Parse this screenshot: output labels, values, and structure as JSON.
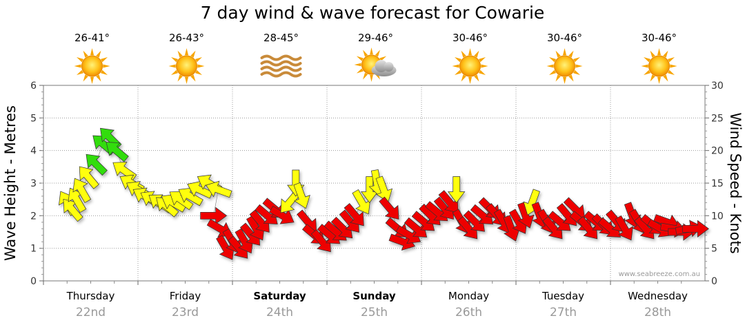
{
  "chart_data": {
    "type": "scatter",
    "title": "7 day wind & wave forecast for Cowarie",
    "ylabel_left": "Wave Height - Metres",
    "ylabel_right": "Wind Speed - Knots",
    "ylim_left": [
      0,
      6
    ],
    "ylim_right": [
      0,
      30
    ],
    "yticks_left": [
      "0",
      "1",
      "2",
      "3",
      "4",
      "5",
      "6"
    ],
    "yticks_right": [
      "0",
      "5",
      "10",
      "15",
      "20",
      "25",
      "30"
    ],
    "grid": true,
    "watermark": "www.seabreeze.com.au",
    "days": [
      {
        "name": "Thursday",
        "date": "22nd",
        "bold": false,
        "temp": "26-41°",
        "icon": "sun-icon"
      },
      {
        "name": "Friday",
        "date": "23rd",
        "bold": false,
        "temp": "26-43°",
        "icon": "sun-icon"
      },
      {
        "name": "Saturday",
        "date": "24th",
        "bold": true,
        "temp": "28-45°",
        "icon": "haze-icon"
      },
      {
        "name": "Sunday",
        "date": "25th",
        "bold": true,
        "temp": "29-46°",
        "icon": "sun-cloud-icon"
      },
      {
        "name": "Monday",
        "date": "26th",
        "bold": false,
        "temp": "30-46°",
        "icon": "sun-icon"
      },
      {
        "name": "Tuesday",
        "date": "27th",
        "bold": false,
        "temp": "30-46°",
        "icon": "sun-icon"
      },
      {
        "name": "Wednesday",
        "date": "28th",
        "bold": false,
        "temp": "30-46°",
        "icon": "sun-icon"
      }
    ],
    "series": [
      {
        "kind": "wind-arrows",
        "colors": {
          "green": "#33dd11",
          "yellow": "#ffff11",
          "red": "#ee0000"
        },
        "points": [
          [
            0.0,
            12,
            "#ffff11",
            330
          ],
          [
            0.05,
            11,
            "#ffff11",
            320
          ],
          [
            0.1,
            12.5,
            "#ffff11",
            330
          ],
          [
            0.15,
            14,
            "#ffff11",
            330
          ],
          [
            0.22,
            16,
            "#ffff11",
            320
          ],
          [
            0.3,
            18,
            "#33dd11",
            315
          ],
          [
            0.38,
            21,
            "#33dd11",
            310
          ],
          [
            0.45,
            22,
            "#33dd11",
            315
          ],
          [
            0.52,
            20,
            "#33dd11",
            310
          ],
          [
            0.6,
            17,
            "#ffff11",
            305
          ],
          [
            0.68,
            15,
            "#ffff11",
            300
          ],
          [
            0.75,
            14,
            "#ffff11",
            300
          ],
          [
            0.82,
            13,
            "#ffff11",
            300
          ],
          [
            0.9,
            12.5,
            "#ffff11",
            300
          ],
          [
            0.98,
            12,
            "#ffff11",
            305
          ],
          [
            1.05,
            11.5,
            "#ffff11",
            310
          ],
          [
            1.12,
            12,
            "#ffff11",
            300
          ],
          [
            1.2,
            12.5,
            "#ffff11",
            305
          ],
          [
            1.3,
            13,
            "#ffff11",
            300
          ],
          [
            1.4,
            14,
            "#ffff11",
            295
          ],
          [
            1.5,
            15,
            "#ffff11",
            300
          ],
          [
            1.6,
            14,
            "#ffff11",
            290
          ],
          [
            1.55,
            10,
            "#ee0000",
            90
          ],
          [
            1.62,
            8,
            "#ee0000",
            120
          ],
          [
            1.68,
            5,
            "#ee0000",
            150
          ],
          [
            1.75,
            6,
            "#ee0000",
            150
          ],
          [
            1.82,
            5,
            "#ee0000",
            140
          ],
          [
            1.88,
            6,
            "#ee0000",
            150
          ],
          [
            1.95,
            7,
            "#ee0000",
            140
          ],
          [
            2.0,
            8,
            "#ee0000",
            150
          ],
          [
            2.05,
            9,
            "#ee0000",
            140
          ],
          [
            2.12,
            10,
            "#ee0000",
            130
          ],
          [
            2.2,
            11,
            "#ee0000",
            130
          ],
          [
            2.28,
            10,
            "#ee0000",
            120
          ],
          [
            2.35,
            12,
            "#ffff11",
            220
          ],
          [
            2.42,
            15,
            "#ffff11",
            180
          ],
          [
            2.48,
            13,
            "#ffff11",
            160
          ],
          [
            2.55,
            9,
            "#ee0000",
            140
          ],
          [
            2.62,
            7,
            "#ee0000",
            130
          ],
          [
            2.7,
            6,
            "#ee0000",
            140
          ],
          [
            2.78,
            7,
            "#ee0000",
            130
          ],
          [
            2.85,
            7.5,
            "#ee0000",
            130
          ],
          [
            2.92,
            8,
            "#ee0000",
            135
          ],
          [
            3.0,
            9,
            "#ee0000",
            140
          ],
          [
            3.05,
            10,
            "#ee0000",
            140
          ],
          [
            3.12,
            12,
            "#ffff11",
            150
          ],
          [
            3.2,
            14,
            "#ffff11",
            180
          ],
          [
            3.28,
            15,
            "#ffff11",
            170
          ],
          [
            3.35,
            14,
            "#ffff11",
            160
          ],
          [
            3.42,
            11,
            "#ee0000",
            140
          ],
          [
            3.5,
            8,
            "#ee0000",
            130
          ],
          [
            3.55,
            6,
            "#ee0000",
            110
          ],
          [
            3.62,
            7,
            "#ee0000",
            120
          ],
          [
            3.7,
            8,
            "#ee0000",
            130
          ],
          [
            3.78,
            9,
            "#ee0000",
            130
          ],
          [
            3.85,
            10,
            "#ee0000",
            135
          ],
          [
            3.92,
            10.5,
            "#ee0000",
            130
          ],
          [
            4.0,
            11,
            "#ee0000",
            140
          ],
          [
            4.05,
            12,
            "#ee0000",
            140
          ],
          [
            4.12,
            14,
            "#ffff11",
            180
          ],
          [
            4.18,
            9,
            "#ee0000",
            150
          ],
          [
            4.25,
            8,
            "#ee0000",
            140
          ],
          [
            4.32,
            9,
            "#ee0000",
            135
          ],
          [
            4.4,
            10,
            "#ee0000",
            130
          ],
          [
            4.48,
            11,
            "#ee0000",
            135
          ],
          [
            4.55,
            10,
            "#ee0000",
            140
          ],
          [
            4.62,
            9,
            "#ee0000",
            150
          ],
          [
            4.7,
            8,
            "#ee0000",
            160
          ],
          [
            4.78,
            9,
            "#ee0000",
            150
          ],
          [
            4.85,
            10,
            "#ee0000",
            160
          ],
          [
            4.92,
            12,
            "#ffff11",
            200
          ],
          [
            5.0,
            10,
            "#ee0000",
            160
          ],
          [
            5.08,
            9,
            "#ee0000",
            150
          ],
          [
            5.15,
            8,
            "#ee0000",
            140
          ],
          [
            5.22,
            9,
            "#ee0000",
            130
          ],
          [
            5.3,
            10,
            "#ee0000",
            140
          ],
          [
            5.38,
            11,
            "#ee0000",
            135
          ],
          [
            5.45,
            9,
            "#ee0000",
            130
          ],
          [
            5.52,
            8,
            "#ee0000",
            140
          ],
          [
            5.6,
            9,
            "#ee0000",
            130
          ],
          [
            5.68,
            8.5,
            "#ee0000",
            135
          ],
          [
            5.75,
            8,
            "#ee0000",
            130
          ],
          [
            5.82,
            9,
            "#ee0000",
            140
          ],
          [
            5.9,
            8,
            "#ee0000",
            150
          ],
          [
            5.98,
            10,
            "#ee0000",
            160
          ],
          [
            6.05,
            9,
            "#ee0000",
            150
          ],
          [
            6.12,
            8,
            "#ee0000",
            140
          ],
          [
            6.2,
            8.5,
            "#ee0000",
            130
          ],
          [
            6.28,
            8,
            "#ee0000",
            120
          ],
          [
            6.35,
            9,
            "#ee0000",
            110
          ],
          [
            6.42,
            8,
            "#ee0000",
            100
          ],
          [
            6.5,
            7.5,
            "#ee0000",
            90
          ],
          [
            6.58,
            8,
            "#ee0000",
            80
          ],
          [
            6.65,
            8,
            "#ee0000",
            90
          ]
        ]
      }
    ]
  }
}
